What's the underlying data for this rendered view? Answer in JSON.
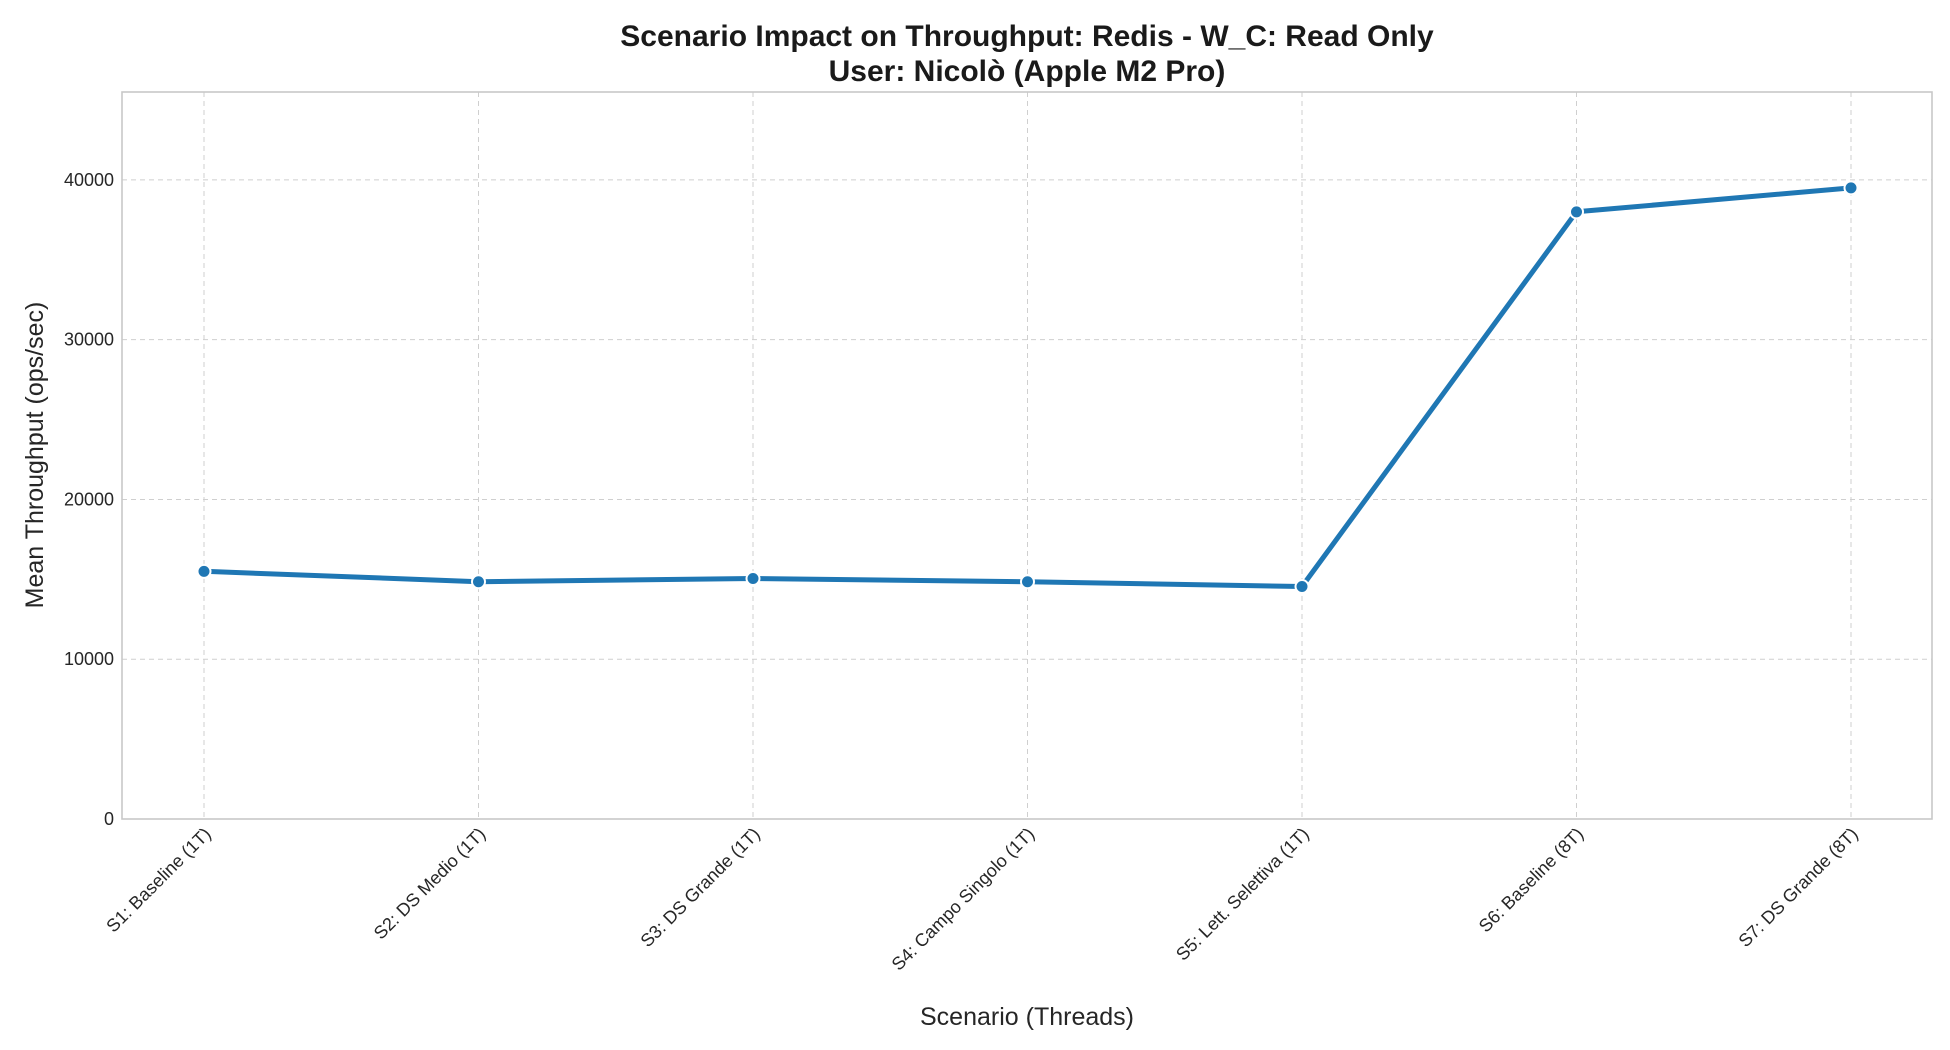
{
  "chart_data": {
    "type": "line",
    "title": "Scenario Impact on Throughput: Redis - W_C: Read Only",
    "subtitle": "User: Nicolò (Apple M2 Pro)",
    "xlabel": "Scenario (Threads)",
    "ylabel": "Mean Throughput (ops/sec)",
    "categories": [
      "S1: Baseline (1T)",
      "S2: DS Medio (1T)",
      "S3: DS Grande (1T)",
      "S4: Campo Singolo (1T)",
      "S5: Lett. Selettiva (1T)",
      "S6: Baseline (8T)",
      "S7: DS Grande (8T)"
    ],
    "series": [
      {
        "values": [
          15500,
          14850,
          15050,
          14850,
          14550,
          38000,
          39500
        ],
        "color": "#1f77b4"
      }
    ],
    "ylim": [
      0,
      45500
    ],
    "yticks": [
      0,
      10000,
      20000,
      30000,
      40000
    ],
    "ytick_labels": [
      "0",
      "10000",
      "20000",
      "30000",
      "40000"
    ],
    "grid": true,
    "legend": "none",
    "xtick_rotation": "45 degrees"
  }
}
